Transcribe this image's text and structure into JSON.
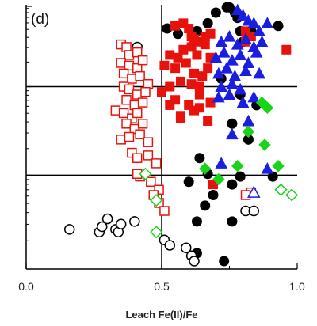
{
  "chart_data": {
    "type": "scatter",
    "panel_label": "(d)",
    "xlabel": "Leach Fe(II)/Fe",
    "ylabel": "",
    "xlim": [
      0,
      1
    ],
    "ylim": [
      0,
      1
    ],
    "x_ticks": [
      0.0,
      0.5,
      1.0
    ],
    "x_tick_labels": [
      "0.0",
      "0.5",
      "1.0"
    ],
    "y_gridlines": [
      0.355,
      0.69
    ],
    "grid": "partial",
    "legend": "none",
    "colors": {
      "black": "#000000",
      "red": "#e8120c",
      "blue": "#1a1ee0",
      "green": "#19d419",
      "axis": "#000000"
    },
    "series": [
      {
        "marker": "circle",
        "fill": true,
        "color": "#000000",
        "x": [
          0.52,
          0.56,
          0.63,
          0.67,
          0.7,
          0.74,
          0.75,
          0.77,
          0.78,
          0.79,
          0.8,
          0.83,
          0.93,
          0.72,
          0.79,
          0.85,
          0.76,
          0.82,
          0.64,
          0.67,
          0.76,
          0.79,
          0.91,
          0.6,
          0.69,
          0.66,
          0.63,
          0.76,
          0.63,
          0.73
        ],
        "y": [
          0.91,
          0.89,
          0.9,
          0.93,
          0.97,
          0.99,
          0.99,
          0.97,
          0.95,
          0.9,
          0.86,
          0.9,
          0.92,
          0.72,
          0.66,
          0.62,
          0.55,
          0.49,
          0.42,
          0.36,
          0.32,
          0.35,
          0.35,
          0.33,
          0.28,
          0.24,
          0.18,
          0.18,
          0.06,
          0.03
        ]
      },
      {
        "marker": "circle",
        "fill": false,
        "color": "#000000",
        "x": [
          0.16,
          0.27,
          0.28,
          0.3,
          0.33,
          0.34,
          0.35,
          0.4,
          0.51,
          0.53,
          0.59,
          0.61,
          0.62,
          0.81,
          0.84,
          0.41
        ],
        "y": [
          0.15,
          0.14,
          0.16,
          0.19,
          0.15,
          0.14,
          0.17,
          0.18,
          0.11,
          0.09,
          0.08,
          0.05,
          0.03,
          0.22,
          0.22,
          0.84
        ]
      },
      {
        "marker": "square",
        "fill": true,
        "color": "#e8120c",
        "x": [
          0.55,
          0.58,
          0.6,
          0.61,
          0.62,
          0.64,
          0.66,
          0.68,
          0.53,
          0.56,
          0.58,
          0.61,
          0.63,
          0.66,
          0.68,
          0.51,
          0.55,
          0.59,
          0.62,
          0.65,
          0.67,
          0.53,
          0.57,
          0.61,
          0.64,
          0.5,
          0.55,
          0.6,
          0.64,
          0.53,
          0.57,
          0.62,
          0.67,
          0.57,
          0.64,
          0.68,
          0.81,
          0.96,
          0.69,
          0.83,
          0.81
        ],
        "y": [
          0.92,
          0.93,
          0.91,
          0.88,
          0.87,
          0.86,
          0.88,
          0.89,
          0.81,
          0.8,
          0.83,
          0.84,
          0.81,
          0.85,
          0.8,
          0.77,
          0.76,
          0.78,
          0.74,
          0.73,
          0.76,
          0.69,
          0.71,
          0.7,
          0.69,
          0.67,
          0.64,
          0.62,
          0.66,
          0.62,
          0.57,
          0.6,
          0.56,
          0.58,
          0.61,
          0.63,
          0.86,
          0.83,
          0.32,
          0.88,
          0.9
        ]
      },
      {
        "marker": "square",
        "fill": false,
        "color": "#e8120c",
        "x": [
          0.35,
          0.37,
          0.38,
          0.41,
          0.35,
          0.38,
          0.41,
          0.43,
          0.36,
          0.39,
          0.42,
          0.45,
          0.36,
          0.38,
          0.41,
          0.44,
          0.37,
          0.4,
          0.43,
          0.33,
          0.36,
          0.39,
          0.41,
          0.37,
          0.4,
          0.43,
          0.35,
          0.38,
          0.42,
          0.45,
          0.39,
          0.41,
          0.45,
          0.48,
          0.42,
          0.46,
          0.49,
          0.41,
          0.47,
          0.49,
          0.51,
          0.83,
          0.81
        ],
        "y": [
          0.85,
          0.84,
          0.81,
          0.82,
          0.78,
          0.77,
          0.76,
          0.79,
          0.74,
          0.72,
          0.73,
          0.7,
          0.69,
          0.68,
          0.66,
          0.67,
          0.64,
          0.62,
          0.63,
          0.6,
          0.59,
          0.57,
          0.59,
          0.55,
          0.53,
          0.55,
          0.49,
          0.5,
          0.51,
          0.48,
          0.44,
          0.42,
          0.43,
          0.4,
          0.35,
          0.33,
          0.3,
          0.36,
          0.28,
          0.25,
          0.22,
          0.29,
          0.28
        ]
      },
      {
        "marker": "triangle",
        "fill": true,
        "color": "#1a1ee0",
        "x": [
          0.78,
          0.8,
          0.82,
          0.84,
          0.86,
          0.89,
          0.72,
          0.75,
          0.78,
          0.81,
          0.84,
          0.87,
          0.7,
          0.73,
          0.76,
          0.79,
          0.82,
          0.85,
          0.71,
          0.74,
          0.77,
          0.81,
          0.86,
          0.72,
          0.76,
          0.79,
          0.71,
          0.75,
          0.8,
          0.84,
          0.76,
          0.82,
          0.89,
          0.72
        ],
        "y": [
          0.98,
          0.96,
          0.94,
          0.93,
          0.9,
          0.93,
          0.86,
          0.88,
          0.85,
          0.87,
          0.84,
          0.86,
          0.8,
          0.82,
          0.79,
          0.81,
          0.78,
          0.82,
          0.74,
          0.76,
          0.73,
          0.75,
          0.74,
          0.69,
          0.7,
          0.68,
          0.65,
          0.66,
          0.63,
          0.65,
          0.51,
          0.56,
          0.38,
          0.4
        ]
      },
      {
        "marker": "triangle",
        "fill": false,
        "color": "#1a1ee0",
        "x": [
          0.84
        ],
        "y": [
          0.29
        ]
      },
      {
        "marker": "diamond",
        "fill": true,
        "color": "#19d419",
        "x": [
          0.87,
          0.89,
          0.88,
          0.82,
          0.93,
          0.78,
          0.66,
          0.71
        ],
        "y": [
          0.63,
          0.61,
          0.47,
          0.52,
          0.39,
          0.39,
          0.38,
          0.34
        ]
      },
      {
        "marker": "diamond",
        "fill": false,
        "color": "#19d419",
        "x": [
          0.44,
          0.48,
          0.48,
          0.94,
          0.98
        ],
        "y": [
          0.36,
          0.26,
          0.14,
          0.3,
          0.28
        ]
      }
    ]
  }
}
